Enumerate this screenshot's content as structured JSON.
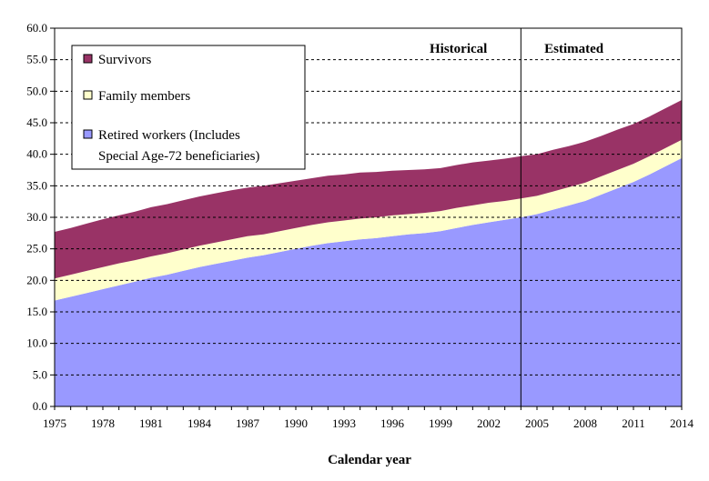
{
  "chart_data": {
    "type": "area",
    "stacked": true,
    "title": "",
    "xlabel": "Calendar year",
    "ylabel": "",
    "xlim": [
      1975,
      2014
    ],
    "ylim": [
      0,
      60
    ],
    "y_ticks": [
      "0.0",
      "5.0",
      "10.0",
      "15.0",
      "20.0",
      "25.0",
      "30.0",
      "35.0",
      "40.0",
      "45.0",
      "50.0",
      "55.0",
      "60.0"
    ],
    "x_ticks": [
      "1975",
      "1978",
      "1981",
      "1984",
      "1987",
      "1990",
      "1993",
      "1996",
      "1999",
      "2002",
      "2005",
      "2008",
      "2011",
      "2014"
    ],
    "grid": "horizontal dashed",
    "legend_position": "top-left",
    "annotations": [
      {
        "text": "Historical",
        "region": "historical"
      },
      {
        "text": "Estimated",
        "region": "estimated"
      }
    ],
    "divider_year": 2004,
    "x": [
      1975,
      1976,
      1977,
      1978,
      1979,
      1980,
      1981,
      1982,
      1983,
      1984,
      1985,
      1986,
      1987,
      1988,
      1989,
      1990,
      1991,
      1992,
      1993,
      1994,
      1995,
      1996,
      1997,
      1998,
      1999,
      2000,
      2001,
      2002,
      2003,
      2004,
      2005,
      2006,
      2007,
      2008,
      2009,
      2010,
      2011,
      2012,
      2013,
      2014
    ],
    "series": [
      {
        "name": "Retired workers (Includes Special Age-72 beneficiaries)",
        "legend_lines": [
          "Retired workers (Includes",
          "Special Age-72 beneficiaries)"
        ],
        "color": "#9999ff",
        "values": [
          16.8,
          17.4,
          18.0,
          18.6,
          19.2,
          19.8,
          20.4,
          20.9,
          21.5,
          22.1,
          22.6,
          23.1,
          23.6,
          24.0,
          24.5,
          25.0,
          25.5,
          25.9,
          26.2,
          26.5,
          26.7,
          27.0,
          27.3,
          27.5,
          27.8,
          28.3,
          28.8,
          29.2,
          29.6,
          30.0,
          30.5,
          31.2,
          31.9,
          32.6,
          33.6,
          34.6,
          35.6,
          36.8,
          38.1,
          39.4
        ]
      },
      {
        "name": "Family members",
        "legend_lines": [
          "Family members"
        ],
        "color": "#ffffcc",
        "values": [
          3.5,
          3.5,
          3.5,
          3.5,
          3.5,
          3.4,
          3.4,
          3.4,
          3.4,
          3.4,
          3.4,
          3.4,
          3.4,
          3.3,
          3.3,
          3.3,
          3.3,
          3.3,
          3.3,
          3.3,
          3.3,
          3.3,
          3.2,
          3.2,
          3.2,
          3.2,
          3.1,
          3.1,
          3.0,
          3.0,
          2.9,
          2.9,
          2.9,
          2.9,
          2.9,
          2.9,
          2.9,
          2.9,
          2.9,
          2.9
        ]
      },
      {
        "name": "Survivors",
        "legend_lines": [
          "Survivors"
        ],
        "color": "#993366",
        "values": [
          7.4,
          7.4,
          7.5,
          7.6,
          7.6,
          7.7,
          7.8,
          7.8,
          7.8,
          7.8,
          7.8,
          7.8,
          7.7,
          7.7,
          7.6,
          7.5,
          7.4,
          7.4,
          7.3,
          7.3,
          7.2,
          7.1,
          7.0,
          6.9,
          6.8,
          6.8,
          6.8,
          6.7,
          6.7,
          6.7,
          6.6,
          6.6,
          6.5,
          6.5,
          6.4,
          6.4,
          6.3,
          6.3,
          6.3,
          6.3
        ]
      }
    ]
  }
}
